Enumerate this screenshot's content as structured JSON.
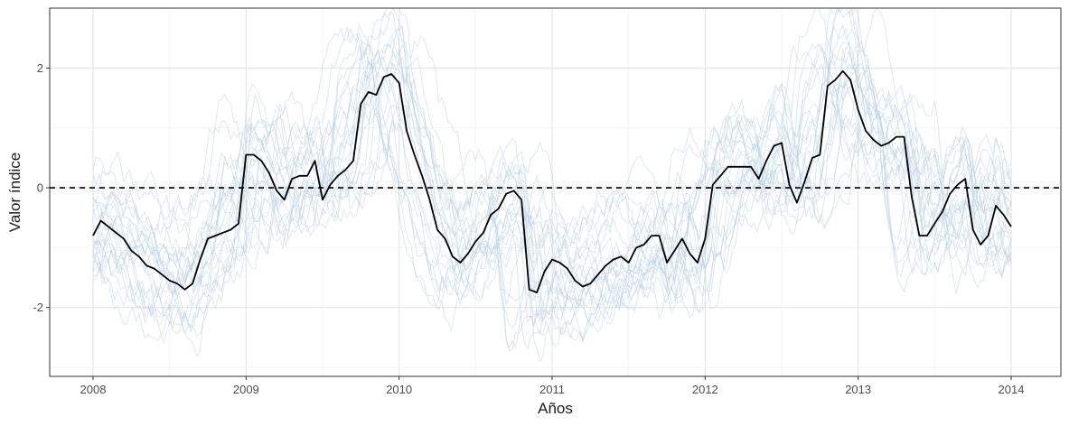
{
  "chart_data": {
    "type": "line",
    "xlabel": "Años",
    "ylabel": "Valor índice",
    "xlim": [
      2008,
      2014
    ],
    "ylim": [
      -3.15,
      3.0
    ],
    "x_ticks": [
      2008,
      2009,
      2010,
      2011,
      2012,
      2013,
      2014
    ],
    "x_tick_labels": [
      "2008",
      "2009",
      "2010",
      "2011",
      "2012",
      "2013",
      "2014"
    ],
    "y_ticks": [
      -2,
      0,
      2
    ],
    "y_tick_labels": [
      "-2",
      "0",
      "2"
    ],
    "grid": true,
    "legend": "none",
    "reference_line": {
      "y": 0,
      "style": "dashed",
      "color": "#000000"
    },
    "colors": {
      "main": "#000000",
      "ensemble": "#b3cde3"
    },
    "ensemble_count": 24,
    "series": [
      {
        "role": "main",
        "x": [
          2008.0,
          2008.05,
          2008.1,
          2008.15,
          2008.2,
          2008.25,
          2008.3,
          2008.35,
          2008.4,
          2008.45,
          2008.5,
          2008.55,
          2008.6,
          2008.65,
          2008.7,
          2008.75,
          2008.8,
          2008.85,
          2008.9,
          2008.95,
          2009.0,
          2009.05,
          2009.1,
          2009.15,
          2009.2,
          2009.25,
          2009.3,
          2009.35,
          2009.4,
          2009.45,
          2009.5,
          2009.55,
          2009.6,
          2009.65,
          2009.7,
          2009.75,
          2009.8,
          2009.85,
          2009.9,
          2009.95,
          2010.0,
          2010.05,
          2010.1,
          2010.15,
          2010.2,
          2010.25,
          2010.3,
          2010.35,
          2010.4,
          2010.45,
          2010.5,
          2010.55,
          2010.6,
          2010.65,
          2010.7,
          2010.75,
          2010.8,
          2010.85,
          2010.9,
          2010.95,
          2011.0,
          2011.05,
          2011.1,
          2011.15,
          2011.2,
          2011.25,
          2011.3,
          2011.35,
          2011.4,
          2011.45,
          2011.5,
          2011.55,
          2011.6,
          2011.65,
          2011.7,
          2011.75,
          2011.8,
          2011.85,
          2011.9,
          2011.95,
          2012.0,
          2012.05,
          2012.1,
          2012.15,
          2012.2,
          2012.25,
          2012.3,
          2012.35,
          2012.4,
          2012.45,
          2012.5,
          2012.55,
          2012.6,
          2012.65,
          2012.7,
          2012.75,
          2012.8,
          2012.85,
          2012.9,
          2012.95,
          2013.0,
          2013.05,
          2013.1,
          2013.15,
          2013.2,
          2013.25,
          2013.3,
          2013.35,
          2013.4,
          2013.45,
          2013.5,
          2013.55,
          2013.6,
          2013.65,
          2013.7,
          2013.75,
          2013.8,
          2013.85,
          2013.9,
          2013.95,
          2014.0
        ],
        "values": [
          -0.8,
          -0.55,
          -0.65,
          -0.75,
          -0.85,
          -1.05,
          -1.15,
          -1.3,
          -1.35,
          -1.45,
          -1.55,
          -1.6,
          -1.7,
          -1.6,
          -1.2,
          -0.85,
          -0.8,
          -0.75,
          -0.7,
          -0.6,
          0.55,
          0.55,
          0.45,
          0.25,
          -0.05,
          -0.2,
          0.15,
          0.2,
          0.2,
          0.45,
          -0.2,
          0.05,
          0.2,
          0.3,
          0.45,
          1.4,
          1.6,
          1.55,
          1.85,
          1.9,
          1.75,
          0.95,
          0.55,
          0.2,
          -0.2,
          -0.7,
          -0.85,
          -1.15,
          -1.25,
          -1.1,
          -0.9,
          -0.75,
          -0.45,
          -0.35,
          -0.1,
          -0.05,
          -0.2,
          -1.7,
          -1.75,
          -1.4,
          -1.2,
          -1.25,
          -1.35,
          -1.55,
          -1.65,
          -1.6,
          -1.45,
          -1.3,
          -1.2,
          -1.15,
          -1.25,
          -1.0,
          -0.95,
          -0.8,
          -0.8,
          -1.25,
          -1.05,
          -0.85,
          -1.1,
          -1.25,
          -0.85,
          0.05,
          0.2,
          0.35,
          0.35,
          0.35,
          0.35,
          0.15,
          0.45,
          0.7,
          0.75,
          0.05,
          -0.25,
          0.1,
          0.5,
          0.55,
          1.7,
          1.8,
          1.95,
          1.8,
          1.3,
          0.95,
          0.8,
          0.7,
          0.75,
          0.85,
          0.85,
          -0.15,
          -0.8,
          -0.8,
          -0.6,
          -0.4,
          -0.1,
          0.05,
          0.15,
          -0.7,
          -0.95,
          -0.8,
          -0.3,
          -0.45,
          -0.65
        ]
      }
    ]
  }
}
